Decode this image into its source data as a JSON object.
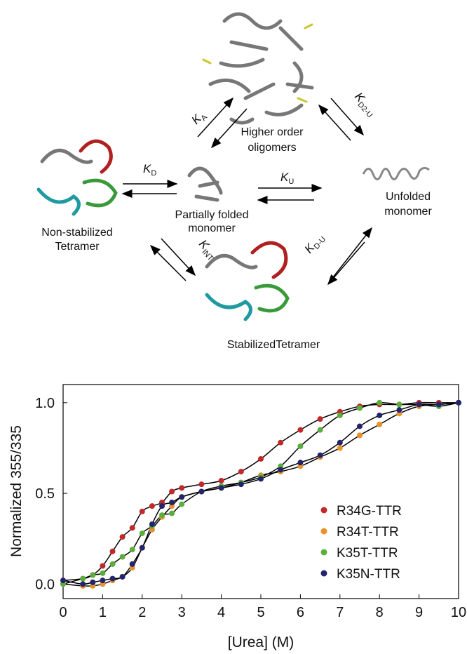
{
  "diagram": {
    "species": {
      "oligomers": [
        "Higher order",
        "oligomers"
      ],
      "partial": [
        "Partially folded",
        "monomer"
      ],
      "unfolded": [
        "Unfolded",
        "monomer"
      ],
      "nonstab": [
        "Non-stabilized",
        "Tetramer"
      ],
      "stab": [
        "StabilizedTetramer"
      ]
    },
    "rates": [
      {
        "symbol": "K",
        "subscript": "A"
      },
      {
        "symbol": "K",
        "subscript": "D2-U"
      },
      {
        "symbol": "K",
        "subscript": "D"
      },
      {
        "symbol": "K",
        "subscript": "U"
      },
      {
        "symbol": "K",
        "subscript": "INT"
      },
      {
        "symbol": "K",
        "subscript": "D-U"
      }
    ]
  },
  "chart_data": {
    "type": "scatter",
    "x_label": "[Urea] (M)",
    "y_label": "Normalized 355/335",
    "x": [
      0,
      0.5,
      0.75,
      1,
      1.25,
      1.5,
      1.75,
      2,
      2.25,
      2.5,
      2.75,
      3,
      3.5,
      4,
      4.5,
      5,
      5.5,
      6,
      6.5,
      7,
      7.5,
      8,
      8.5,
      9,
      9.5,
      10
    ],
    "series": [
      {
        "name": "R34G-TTR",
        "color": "#c0282a",
        "values": [
          0.02,
          0.03,
          0.05,
          0.1,
          0.18,
          0.26,
          0.31,
          0.4,
          0.43,
          0.45,
          0.51,
          0.53,
          0.55,
          0.57,
          0.62,
          0.69,
          0.78,
          0.85,
          0.91,
          0.95,
          0.98,
          0.99,
          0.99,
          1.0,
          1.0,
          1.0
        ]
      },
      {
        "name": "R34T-TTR",
        "color": "#e8922a",
        "values": [
          0.0,
          -0.01,
          -0.01,
          0.0,
          0.02,
          0.04,
          0.09,
          0.2,
          0.3,
          0.37,
          0.43,
          0.48,
          0.51,
          0.53,
          0.56,
          0.6,
          0.62,
          0.65,
          0.7,
          0.75,
          0.82,
          0.88,
          0.94,
          0.98,
          0.99,
          1.0
        ]
      },
      {
        "name": "K35T-TTR",
        "color": "#5aae3c",
        "values": [
          0.0,
          0.03,
          0.05,
          0.06,
          0.11,
          0.15,
          0.19,
          0.28,
          0.32,
          0.38,
          0.39,
          0.44,
          0.51,
          0.54,
          0.56,
          0.59,
          0.65,
          0.76,
          0.85,
          0.93,
          0.97,
          1.0,
          0.99,
          0.99,
          0.98,
          1.0
        ]
      },
      {
        "name": "K35N-TTR",
        "color": "#23236e",
        "values": [
          0.02,
          0.0,
          0.01,
          0.02,
          0.03,
          0.04,
          0.11,
          0.2,
          0.33,
          0.43,
          0.45,
          0.48,
          0.51,
          0.53,
          0.55,
          0.58,
          0.63,
          0.67,
          0.71,
          0.78,
          0.87,
          0.93,
          0.96,
          0.99,
          0.99,
          1.0
        ]
      }
    ],
    "fit_line_color": "#000000",
    "xlim": [
      0,
      10
    ],
    "xticks": [
      0,
      1,
      2,
      3,
      4,
      5,
      6,
      7,
      8,
      9,
      10
    ],
    "ylim": [
      -0.08,
      1.1
    ],
    "yticks": [
      {
        "value": 0,
        "label": "0.0"
      },
      {
        "value": 0.5,
        "label": "0.5"
      },
      {
        "value": 1,
        "label": "1.0"
      }
    ],
    "legend": "lower right"
  }
}
